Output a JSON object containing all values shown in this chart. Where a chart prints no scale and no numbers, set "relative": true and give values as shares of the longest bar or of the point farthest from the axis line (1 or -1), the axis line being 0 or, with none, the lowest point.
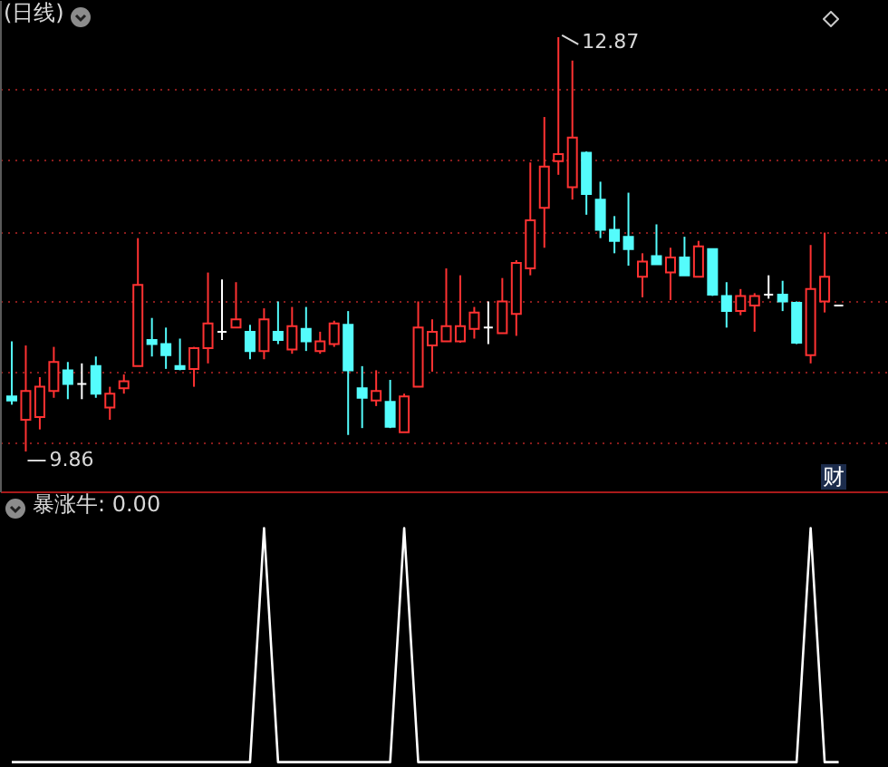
{
  "chart_data": [
    {
      "type": "candlestick",
      "title": "(日线)",
      "categories": [
        null,
        null,
        null,
        null,
        null,
        null,
        null,
        null,
        null,
        null,
        null,
        null,
        null,
        null,
        null,
        null,
        null,
        null,
        null,
        null,
        null,
        null,
        null,
        null,
        null,
        null,
        null,
        null,
        null,
        null,
        null,
        null,
        null,
        null,
        null,
        null,
        null,
        null,
        null,
        null,
        null,
        null,
        null,
        null,
        null,
        null,
        null,
        null,
        null,
        null,
        null,
        null,
        null,
        null,
        null,
        null,
        null,
        null,
        null,
        null
      ],
      "ohlc": [
        [
          10.26,
          10.66,
          10.2,
          10.23
        ],
        [
          10.09,
          10.63,
          9.86,
          10.3
        ],
        [
          10.11,
          10.4,
          10.02,
          10.33
        ],
        [
          10.3,
          10.62,
          10.25,
          10.51
        ],
        [
          10.45,
          10.51,
          10.24,
          10.35
        ],
        [
          10.35,
          10.5,
          10.24,
          10.35
        ],
        [
          10.48,
          10.55,
          10.25,
          10.28
        ],
        [
          10.18,
          10.33,
          10.09,
          10.28
        ],
        [
          10.32,
          10.42,
          10.28,
          10.37
        ],
        [
          10.48,
          11.41,
          10.48,
          11.07
        ],
        [
          10.67,
          10.83,
          10.55,
          10.64
        ],
        [
          10.64,
          10.76,
          10.46,
          10.56
        ],
        [
          10.48,
          10.68,
          10.45,
          10.46
        ],
        [
          10.46,
          10.62,
          10.33,
          10.61
        ],
        [
          10.61,
          11.16,
          10.5,
          10.79
        ],
        [
          10.73,
          11.11,
          10.67,
          10.73
        ],
        [
          10.76,
          11.09,
          10.76,
          10.82
        ],
        [
          10.73,
          10.78,
          10.53,
          10.59
        ],
        [
          10.59,
          10.9,
          10.53,
          10.82
        ],
        [
          10.73,
          10.95,
          10.64,
          10.67
        ],
        [
          10.6,
          10.91,
          10.57,
          10.77
        ],
        [
          10.75,
          10.91,
          10.59,
          10.66
        ],
        [
          10.59,
          10.73,
          10.57,
          10.66
        ],
        [
          10.64,
          10.81,
          10.62,
          10.79
        ],
        [
          10.78,
          10.88,
          9.98,
          10.45
        ],
        [
          10.32,
          10.48,
          10.03,
          10.25
        ],
        [
          10.23,
          10.45,
          10.19,
          10.3
        ],
        [
          10.22,
          10.38,
          10.03,
          10.04
        ],
        [
          10.0,
          10.28,
          10.0,
          10.26
        ],
        [
          10.33,
          10.95,
          10.33,
          10.76
        ],
        [
          10.63,
          10.82,
          10.44,
          10.73
        ],
        [
          10.66,
          11.19,
          10.66,
          10.77
        ],
        [
          10.66,
          11.14,
          10.65,
          10.77
        ],
        [
          10.75,
          10.91,
          10.68,
          10.87
        ],
        [
          10.76,
          10.95,
          10.64,
          10.76
        ],
        [
          10.72,
          11.12,
          10.72,
          10.95
        ],
        [
          10.86,
          11.25,
          10.7,
          11.23
        ],
        [
          11.19,
          11.96,
          11.14,
          11.54
        ],
        [
          11.63,
          12.29,
          11.34,
          11.93
        ],
        [
          11.97,
          12.87,
          11.87,
          12.02
        ],
        [
          11.78,
          12.7,
          11.69,
          12.14
        ],
        [
          12.03,
          12.04,
          11.58,
          11.73
        ],
        [
          11.69,
          11.82,
          11.41,
          11.47
        ],
        [
          11.47,
          11.57,
          11.3,
          11.39
        ],
        [
          11.42,
          11.74,
          11.21,
          11.33
        ],
        [
          11.13,
          11.3,
          10.98,
          11.24
        ],
        [
          11.28,
          11.51,
          11.22,
          11.22
        ],
        [
          11.16,
          11.34,
          10.96,
          11.27
        ],
        [
          11.27,
          11.42,
          11.14,
          11.14
        ],
        [
          11.13,
          11.39,
          11.13,
          11.35
        ],
        [
          11.33,
          11.33,
          10.99,
          11.0
        ],
        [
          10.99,
          11.09,
          10.76,
          10.88
        ],
        [
          10.88,
          11.04,
          10.85,
          10.99
        ],
        [
          10.92,
          11.01,
          10.73,
          10.99
        ],
        [
          11.0,
          11.14,
          10.97,
          11.0
        ],
        [
          11.0,
          11.1,
          10.88,
          10.95
        ],
        [
          10.94,
          10.95,
          10.64,
          10.65
        ],
        [
          10.56,
          11.36,
          10.5,
          11.04
        ],
        [
          10.95,
          11.45,
          10.87,
          11.13
        ],
        [
          10.92,
          10.92,
          10.92,
          10.92
        ]
      ],
      "colors": [
        "#54fcfc",
        "#ff3232",
        "#ff3232",
        "#ff3232",
        "#54fcfc",
        "#ffffff",
        "#54fcfc",
        "#ff3232",
        "#ff3232",
        "#ff3232",
        "#54fcfc",
        "#54fcfc",
        "#54fcfc",
        "#ff3232",
        "#ff3232",
        "#ffffff",
        "#ff3232",
        "#54fcfc",
        "#ff3232",
        "#54fcfc",
        "#ff3232",
        "#54fcfc",
        "#ff3232",
        "#ff3232",
        "#54fcfc",
        "#54fcfc",
        "#ff3232",
        "#54fcfc",
        "#ff3232",
        "#ff3232",
        "#ff3232",
        "#ff3232",
        "#ff3232",
        "#ff3232",
        "#ffffff",
        "#ff3232",
        "#ff3232",
        "#ff3232",
        "#ff3232",
        "#ff3232",
        "#ff3232",
        "#54fcfc",
        "#54fcfc",
        "#54fcfc",
        "#54fcfc",
        "#ff3232",
        "#54fcfc",
        "#ff3232",
        "#54fcfc",
        "#ff3232",
        "#54fcfc",
        "#54fcfc",
        "#ff3232",
        "#ff3232",
        "#ffffff",
        "#54fcfc",
        "#54fcfc",
        "#ff3232",
        "#ff3232",
        "#ffffff"
      ],
      "ylim": [
        9.57,
        13.14
      ],
      "yticks": [
        {
          "value": 9.93,
          "label": null
        },
        {
          "value": 10.44,
          "label": null
        },
        {
          "value": 10.95,
          "label": null
        },
        {
          "value": 11.46,
          "label": null
        },
        {
          "value": 11.98,
          "label": null
        },
        {
          "value": 12.49,
          "label": null
        }
      ],
      "grid": "y",
      "tick_labels": false,
      "annotations": [
        "12.87",
        "9.86",
        "财"
      ]
    },
    {
      "type": "line",
      "title": "暴涨牛: 0.00",
      "relative": true,
      "tick_labels": false,
      "categories": [
        null,
        null,
        null,
        null,
        null,
        null,
        null,
        null,
        null,
        null,
        null,
        null,
        null,
        null,
        null,
        null,
        null,
        null,
        null,
        null,
        null,
        null,
        null,
        null,
        null,
        null,
        null,
        null,
        null,
        null,
        null,
        null,
        null,
        null,
        null,
        null,
        null,
        null,
        null,
        null,
        null,
        null,
        null,
        null,
        null,
        null,
        null,
        null,
        null,
        null,
        null,
        null,
        null,
        null,
        null,
        null,
        null,
        null,
        null,
        null
      ],
      "series": [
        {
          "color": "#ffffff",
          "values": [
            0,
            0,
            0,
            0,
            0,
            0,
            0,
            0,
            0,
            0,
            0,
            0,
            0,
            0,
            0,
            0,
            0,
            0,
            1,
            0,
            0,
            0,
            0,
            0,
            0,
            0,
            0,
            0,
            1,
            0,
            0,
            0,
            0,
            0,
            0,
            0,
            0,
            0,
            0,
            0,
            0,
            0,
            0,
            0,
            0,
            0,
            0,
            0,
            0,
            0,
            0,
            0,
            0,
            0,
            0,
            0,
            0,
            1,
            0,
            0
          ]
        }
      ]
    }
  ]
}
